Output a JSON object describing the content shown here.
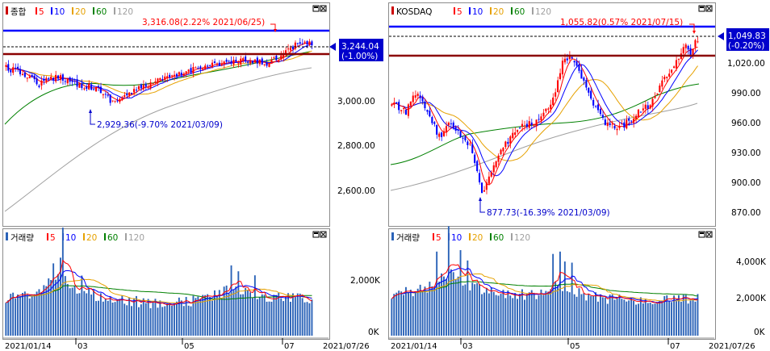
{
  "left": {
    "price": {
      "title": "종합",
      "legend": [
        {
          "label": "5",
          "color": "#ff0000"
        },
        {
          "label": "10",
          "color": "#0000ff"
        },
        {
          "label": "20",
          "color": "#e6a100"
        },
        {
          "label": "60",
          "color": "#008000"
        },
        {
          "label": "120",
          "color": "#a0a0a0"
        }
      ],
      "high_annotation": "3,316.08(2.22% 2021/06/25)",
      "low_annotation": "2,929.36(-9.70% 2021/03/09)",
      "current_value": "3,244.04",
      "current_change": "(-1.00%)",
      "yticks": [
        "3,000.00",
        "2,800.00",
        "2,600.00"
      ]
    },
    "volume": {
      "title": "거래량",
      "legend": [
        {
          "label": "5",
          "color": "#ff0000"
        },
        {
          "label": "10",
          "color": "#0000ff"
        },
        {
          "label": "20",
          "color": "#e6a100"
        },
        {
          "label": "60",
          "color": "#008000"
        },
        {
          "label": "120",
          "color": "#a0a0a0"
        }
      ],
      "yticks": [
        "2,000K",
        "0K"
      ]
    },
    "xlabels": [
      "2021/01/14",
      "03",
      "05",
      "07"
    ],
    "date": "2021/07/26"
  },
  "right": {
    "price": {
      "title": "KOSDAQ",
      "legend": [
        {
          "label": "5",
          "color": "#ff0000"
        },
        {
          "label": "10",
          "color": "#0000ff"
        },
        {
          "label": "20",
          "color": "#e6a100"
        },
        {
          "label": "60",
          "color": "#008000"
        },
        {
          "label": "120",
          "color": "#a0a0a0"
        }
      ],
      "high_annotation": "1,055.82(0.57% 2021/07/15)",
      "low_annotation": "877.73(-16.39% 2021/03/09)",
      "current_value": "1,049.83",
      "current_change": "(-0.20%)",
      "yticks": [
        "1,020.00",
        "990.00",
        "960.00",
        "930.00",
        "900.00",
        "870.00"
      ]
    },
    "volume": {
      "title": "거래량",
      "legend": [
        {
          "label": "5",
          "color": "#ff0000"
        },
        {
          "label": "10",
          "color": "#0000ff"
        },
        {
          "label": "20",
          "color": "#e6a100"
        },
        {
          "label": "60",
          "color": "#008000"
        },
        {
          "label": "120",
          "color": "#a0a0a0"
        }
      ],
      "yticks": [
        "4,000K",
        "2,000K",
        "0K"
      ]
    },
    "xlabels": [
      "2021/01/14",
      "03",
      "05",
      "07"
    ],
    "date": "2021/07/26"
  },
  "colors": {
    "up": "#ff0000",
    "down": "#0000ff",
    "blue_line": "#0000ff",
    "dark_red_line": "#8b0000",
    "badge_bg": "#0000cc",
    "volume_bar": "#2b63b8"
  }
}
